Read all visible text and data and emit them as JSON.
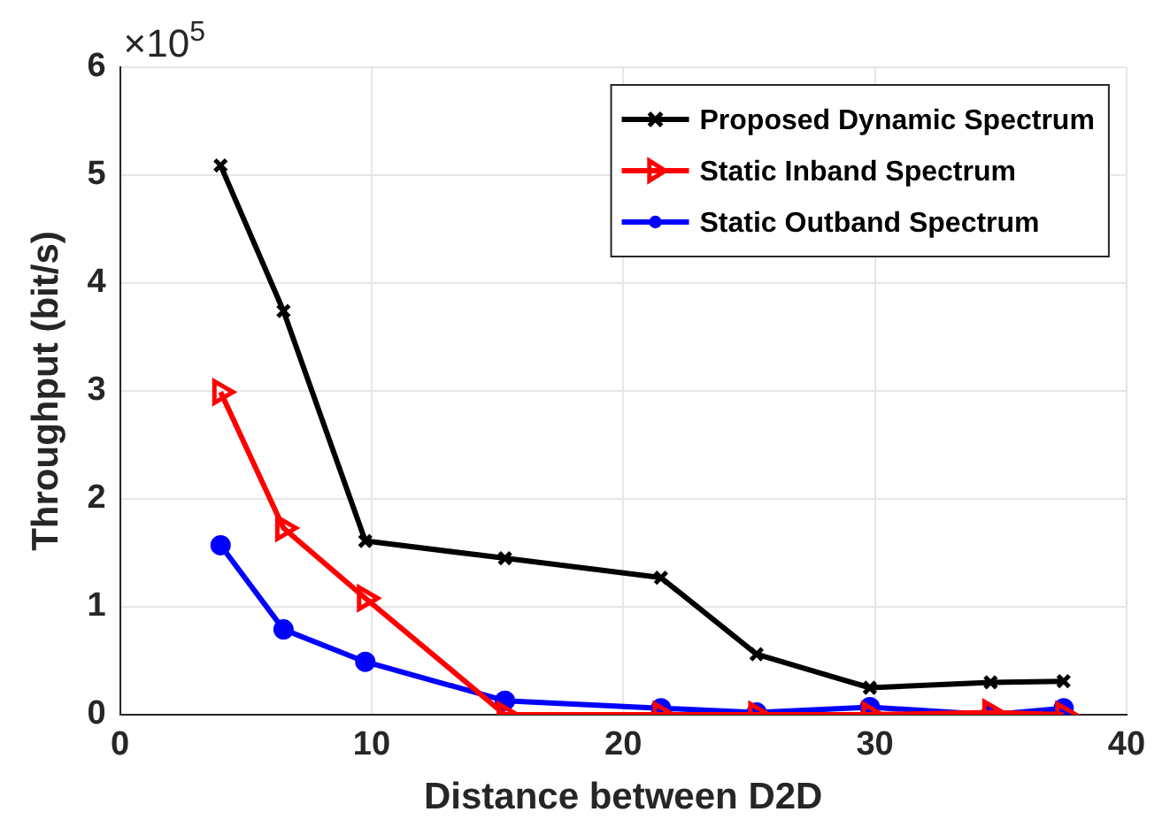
{
  "chart_data": {
    "type": "line",
    "xlabel": "Distance between D2D",
    "ylabel": "Throughput (bit/s)",
    "annotations": [
      "×10$^{5}$"
    ],
    "x": [
      4,
      6.5,
      9.75,
      15.3,
      21.5,
      25.3,
      29.8,
      34.6,
      37.5
    ],
    "xlim": [
      0,
      40
    ],
    "xticks": [
      0,
      10,
      20,
      30,
      40
    ],
    "ylim": [
      0,
      6
    ],
    "yticks": [
      0,
      1,
      2,
      3,
      4,
      5,
      6
    ],
    "grid": true,
    "legend": "top right",
    "series": [
      {
        "name": "Proposed Dynamic Spectrum",
        "color": "#000000",
        "marker": "cross",
        "values": [
          5.09,
          3.74,
          1.61,
          1.45,
          1.27,
          0.56,
          0.25,
          0.3,
          0.31
        ]
      },
      {
        "name": "Static Inband Spectrum",
        "color": "#ff0000",
        "marker": "triangle",
        "values": [
          2.99,
          1.73,
          1.08,
          0,
          0,
          0,
          0,
          0.02,
          0
        ]
      },
      {
        "name": "Static Outband Spectrum",
        "color": "#0000ff",
        "marker": "circle",
        "values": [
          1.57,
          0.79,
          0.49,
          0.13,
          0.06,
          0.02,
          0.07,
          0,
          0.06
        ]
      }
    ]
  }
}
